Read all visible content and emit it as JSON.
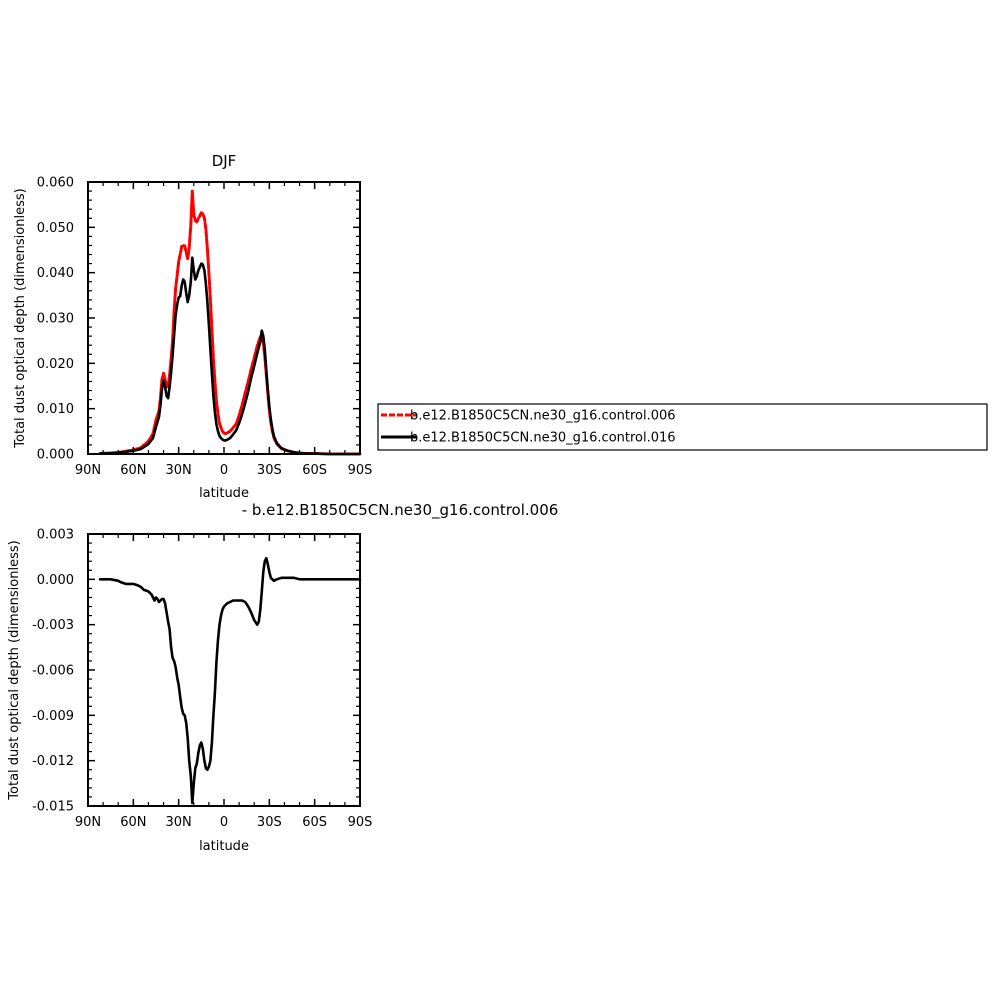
{
  "chart_data": [
    {
      "type": "line",
      "title": "DJF",
      "xlabel": "latitude",
      "ylabel": "Total dust optical depth (dimensionless)",
      "x_tick_labels": [
        "90N",
        "60N",
        "30N",
        "0",
        "30S",
        "60S",
        "90S"
      ],
      "x_tick_values": [
        90,
        60,
        30,
        0,
        -30,
        -60,
        -90
      ],
      "xlim": [
        90,
        -90
      ],
      "y_tick_labels": [
        "0.000",
        "0.010",
        "0.020",
        "0.030",
        "0.040",
        "0.050",
        "0.060"
      ],
      "y_tick_values": [
        0.0,
        0.01,
        0.02,
        0.03,
        0.04,
        0.05,
        0.06
      ],
      "ylim": [
        0.0,
        0.06
      ],
      "legend_position": "right",
      "series": [
        {
          "name": "b.e12.B1850C5CN.ne30_g16.control.006",
          "color": "#ff0000",
          "style": "dashed",
          "x": [
            82,
            75,
            70,
            65,
            60,
            55,
            50,
            47,
            45,
            43,
            42,
            41,
            40,
            39,
            38,
            37,
            36,
            35,
            34,
            33,
            32,
            31,
            30,
            29,
            28,
            27,
            26,
            25,
            24,
            23,
            22,
            21,
            20,
            19,
            18,
            17,
            16,
            15,
            14,
            13,
            12,
            11,
            10,
            9,
            8,
            7,
            6,
            5,
            4,
            3,
            2,
            1,
            0,
            -1,
            -2,
            -3,
            -4,
            -5,
            -6,
            -8,
            -10,
            -12,
            -14,
            -16,
            -18,
            -20,
            -22,
            -24,
            -25,
            -26,
            -27,
            -28,
            -29,
            -30,
            -31,
            -32,
            -33,
            -35,
            -38,
            -42,
            -46,
            -50,
            -55,
            -60,
            -70,
            -80,
            -90
          ],
          "y": [
            0.0001,
            0.0002,
            0.0003,
            0.0006,
            0.0009,
            0.0014,
            0.0028,
            0.0045,
            0.0075,
            0.0095,
            0.0125,
            0.0165,
            0.0178,
            0.0165,
            0.0148,
            0.015,
            0.0175,
            0.021,
            0.025,
            0.0315,
            0.0365,
            0.0395,
            0.0425,
            0.044,
            0.0458,
            0.046,
            0.0459,
            0.0445,
            0.043,
            0.0455,
            0.0505,
            0.058,
            0.0528,
            0.0515,
            0.0512,
            0.052,
            0.0525,
            0.0532,
            0.053,
            0.052,
            0.0495,
            0.0452,
            0.04,
            0.034,
            0.0275,
            0.021,
            0.016,
            0.0118,
            0.0088,
            0.0068,
            0.0058,
            0.005,
            0.0046,
            0.0045,
            0.0046,
            0.0048,
            0.005,
            0.0054,
            0.0058,
            0.0066,
            0.0085,
            0.0108,
            0.0135,
            0.016,
            0.0188,
            0.0212,
            0.0238,
            0.0258,
            0.0265,
            0.0245,
            0.0215,
            0.0175,
            0.0135,
            0.0098,
            0.007,
            0.005,
            0.0036,
            0.0022,
            0.0012,
            0.0007,
            0.0004,
            0.0002,
            0.0001,
            0.0001,
            0.0,
            0.0,
            0.0
          ]
        },
        {
          "name": "b.e12.B1850C5CN.ne30_g16.control.016",
          "color": "#000000",
          "style": "solid",
          "x": [
            82,
            75,
            70,
            65,
            60,
            55,
            50,
            47,
            45,
            43,
            42,
            41,
            40,
            39,
            38,
            37,
            36,
            35,
            34,
            33,
            32,
            31,
            30,
            29,
            28,
            27,
            26,
            25,
            24,
            23,
            22,
            21,
            20,
            19,
            18,
            17,
            16,
            15,
            14,
            13,
            12,
            11,
            10,
            9,
            8,
            7,
            6,
            5,
            4,
            3,
            2,
            1,
            0,
            -1,
            -2,
            -3,
            -4,
            -5,
            -6,
            -8,
            -10,
            -12,
            -14,
            -16,
            -18,
            -20,
            -22,
            -24,
            -25,
            -26,
            -27,
            -28,
            -29,
            -30,
            -31,
            -32,
            -33,
            -35,
            -38,
            -42,
            -46,
            -50,
            -55,
            -60,
            -70,
            -80,
            -90
          ],
          "y": [
            0.0001,
            0.0002,
            0.0003,
            0.0005,
            0.0007,
            0.0011,
            0.0022,
            0.0035,
            0.006,
            0.0082,
            0.0108,
            0.0145,
            0.0162,
            0.0148,
            0.0128,
            0.0123,
            0.0148,
            0.018,
            0.0218,
            0.0262,
            0.0305,
            0.033,
            0.0345,
            0.0348,
            0.0372,
            0.0385,
            0.038,
            0.0355,
            0.0335,
            0.035,
            0.038,
            0.0433,
            0.0405,
            0.0385,
            0.0392,
            0.0405,
            0.0412,
            0.042,
            0.0418,
            0.0405,
            0.0375,
            0.0335,
            0.0285,
            0.023,
            0.0178,
            0.0128,
            0.0092,
            0.0066,
            0.005,
            0.004,
            0.0035,
            0.0032,
            0.003,
            0.003,
            0.0031,
            0.0033,
            0.0035,
            0.0039,
            0.0043,
            0.0052,
            0.0068,
            0.0088,
            0.0112,
            0.0138,
            0.0168,
            0.0194,
            0.0222,
            0.0248,
            0.0272,
            0.026,
            0.023,
            0.0185,
            0.0142,
            0.0105,
            0.0077,
            0.0055,
            0.0039,
            0.0024,
            0.0013,
            0.0007,
            0.0004,
            0.0002,
            0.0001,
            0.0001,
            0.0,
            0.0,
            0.0
          ]
        }
      ]
    },
    {
      "type": "line",
      "title": "- b.e12.B1850C5CN.ne30_g16.control.006",
      "xlabel": "latitude",
      "ylabel": "Total dust optical depth (dimensionless)",
      "x_tick_labels": [
        "90N",
        "60N",
        "30N",
        "0",
        "30S",
        "60S",
        "90S"
      ],
      "x_tick_values": [
        90,
        60,
        30,
        0,
        -30,
        -60,
        -90
      ],
      "xlim": [
        90,
        -90
      ],
      "y_tick_labels": [
        "0.003",
        "0.000",
        "-0.003",
        "-0.006",
        "-0.009",
        "-0.012",
        "-0.015"
      ],
      "y_tick_values": [
        0.003,
        0.0,
        -0.003,
        -0.006,
        -0.009,
        -0.012,
        -0.015
      ],
      "ylim": [
        -0.015,
        0.003
      ],
      "series": [
        {
          "color": "#000000",
          "style": "solid",
          "x": [
            82,
            75,
            70,
            68,
            65,
            60,
            57,
            55,
            53,
            50,
            48,
            47,
            46,
            45,
            44,
            43,
            42,
            41,
            40,
            39,
            38,
            37,
            36,
            35,
            34,
            33,
            32,
            31,
            30,
            29,
            28,
            27,
            26,
            25,
            24,
            23,
            22,
            21,
            20,
            19,
            18,
            17,
            16,
            15,
            14,
            13,
            12,
            11,
            10,
            9,
            8,
            7,
            6,
            5,
            4,
            3,
            2,
            1,
            0,
            -1,
            -2,
            -4,
            -6,
            -8,
            -10,
            -12,
            -14,
            -16,
            -18,
            -20,
            -22,
            -23,
            -24,
            -25,
            -26,
            -27,
            -28,
            -29,
            -30,
            -31,
            -32,
            -33,
            -35,
            -38,
            -42,
            -46,
            -50,
            -55,
            -60,
            -70,
            -80,
            -90
          ],
          "y": [
            0.0,
            0.0,
            -0.0001,
            -0.0002,
            -0.0003,
            -0.0003,
            -0.0004,
            -0.0005,
            -0.0007,
            -0.0008,
            -0.001,
            -0.0012,
            -0.0014,
            -0.0012,
            -0.0013,
            -0.0015,
            -0.0014,
            -0.0013,
            -0.0013,
            -0.0016,
            -0.0022,
            -0.0028,
            -0.0033,
            -0.0045,
            -0.0052,
            -0.0054,
            -0.0058,
            -0.0065,
            -0.007,
            -0.0078,
            -0.0085,
            -0.0089,
            -0.009,
            -0.0095,
            -0.0105,
            -0.012,
            -0.013,
            -0.0148,
            -0.0135,
            -0.0125,
            -0.0122,
            -0.0115,
            -0.011,
            -0.0108,
            -0.0112,
            -0.012,
            -0.0125,
            -0.0126,
            -0.0124,
            -0.012,
            -0.0108,
            -0.009,
            -0.0075,
            -0.0055,
            -0.004,
            -0.003,
            -0.0024,
            -0.002,
            -0.0018,
            -0.0017,
            -0.0016,
            -0.0015,
            -0.0014,
            -0.0014,
            -0.0014,
            -0.0014,
            -0.0015,
            -0.0018,
            -0.0022,
            -0.0027,
            -0.003,
            -0.0028,
            -0.002,
            -0.0008,
            0.0005,
            0.0012,
            0.0014,
            0.001,
            0.0005,
            0.0001,
            0.0,
            -0.0001,
            0.0,
            0.0001,
            0.0001,
            0.0001,
            0.0,
            0.0,
            0.0,
            0.0,
            0.0,
            0.0
          ]
        }
      ]
    }
  ]
}
